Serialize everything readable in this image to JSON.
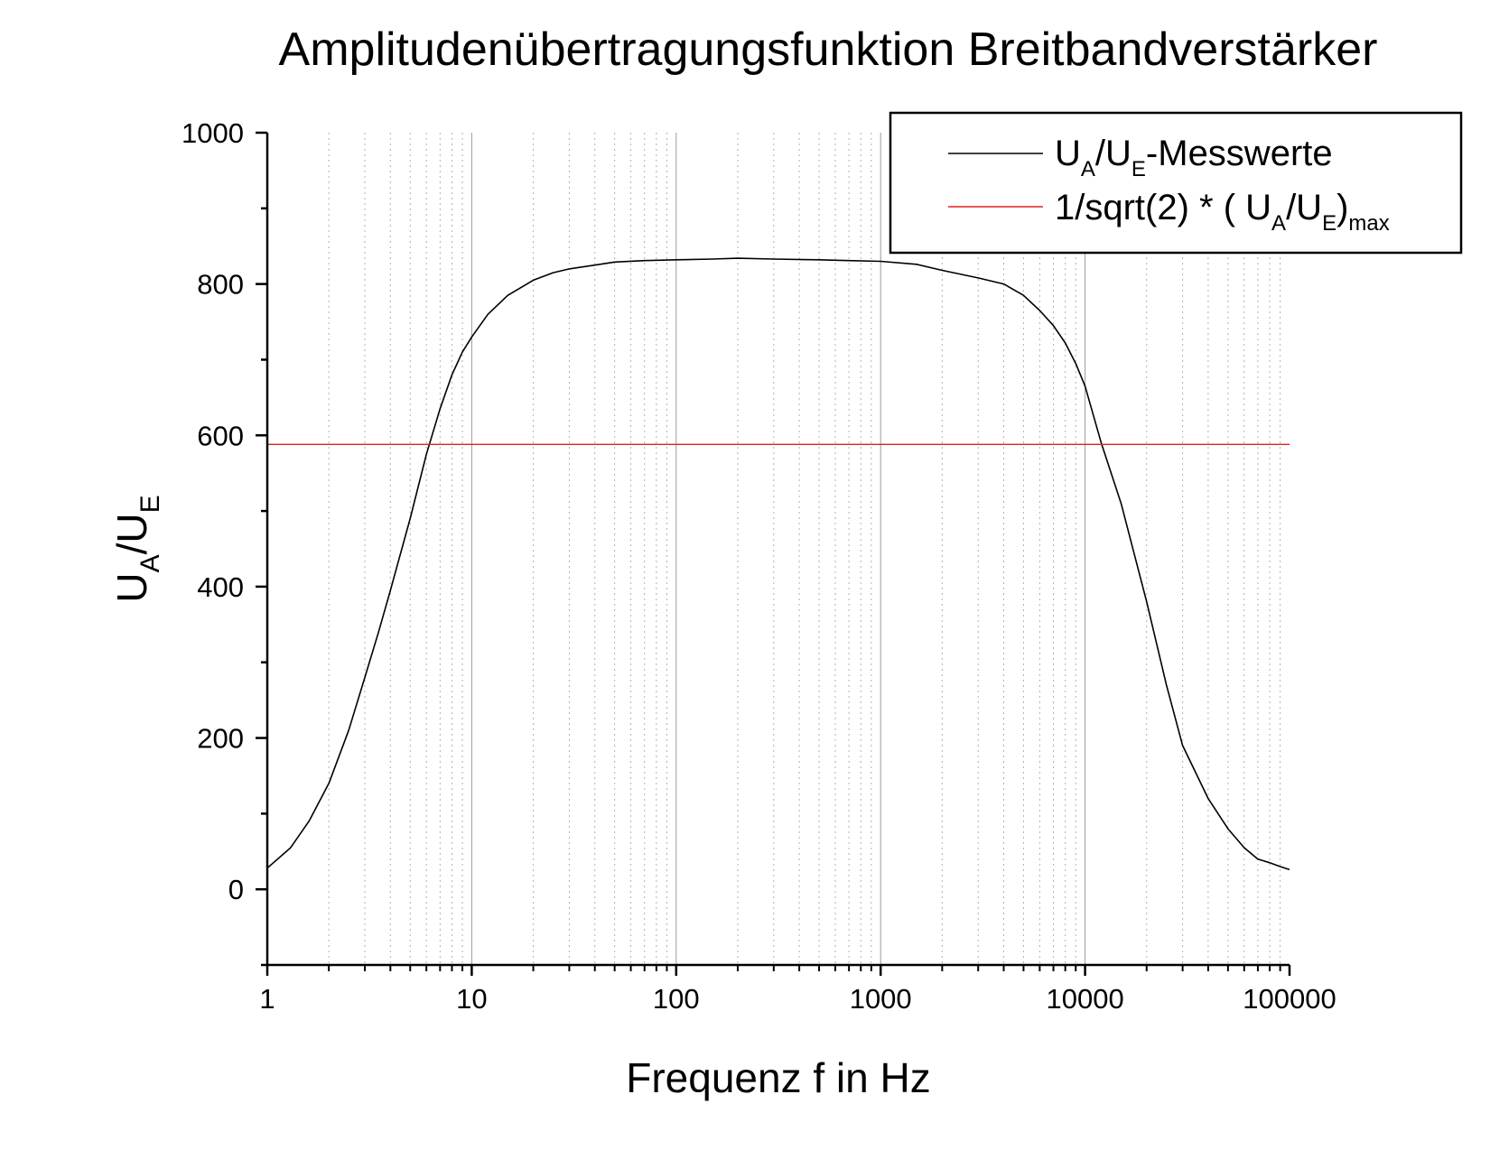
{
  "chart_data": {
    "type": "line",
    "title": "Amplitudenübertragungsfunktion Breitbandverstärker",
    "xlabel": "Frequenz f in Hz",
    "ylabel": {
      "main": "U",
      "sub1": "A",
      "mid": "/U",
      "sub2": "E"
    },
    "x_scale": "log",
    "xlim": [
      1,
      100000
    ],
    "ylim": [
      -100,
      1000
    ],
    "x_ticks": [
      "1",
      "10",
      "100",
      "1000",
      "10000",
      "100000"
    ],
    "x_tick_values": [
      1,
      10,
      100,
      1000,
      10000,
      100000
    ],
    "y_ticks": [
      "0",
      "200",
      "400",
      "600",
      "800",
      "1000"
    ],
    "y_tick_values": [
      0,
      200,
      400,
      600,
      800,
      1000
    ],
    "grid": "vertical major (solid) and minor (dotted) lines",
    "legend_position": "top-right",
    "series": [
      {
        "name": "U_A/U_E-Messwerte",
        "legend": {
          "p1": "U",
          "s1": "A",
          "p2": "/U",
          "s2": "E",
          "p3": "-Messwerte"
        },
        "color": "#000000",
        "x": [
          1,
          1.3,
          1.6,
          2,
          2.5,
          3,
          3.5,
          4,
          5,
          6,
          7,
          8,
          9,
          10,
          12,
          15,
          20,
          25,
          30,
          40,
          50,
          70,
          100,
          150,
          200,
          300,
          500,
          700,
          1000,
          1500,
          2000,
          3000,
          4000,
          5000,
          6000,
          7000,
          8000,
          9000,
          10000,
          12000,
          15000,
          20000,
          25000,
          30000,
          40000,
          50000,
          60000,
          70000,
          80000,
          90000,
          100000
        ],
        "y": [
          28,
          55,
          90,
          140,
          210,
          280,
          340,
          395,
          490,
          575,
          635,
          680,
          710,
          730,
          760,
          785,
          805,
          815,
          820,
          825,
          829,
          831,
          832,
          833,
          834,
          833,
          832,
          831,
          830,
          826,
          818,
          808,
          800,
          785,
          765,
          745,
          722,
          695,
          665,
          590,
          510,
          380,
          270,
          190,
          120,
          80,
          55,
          40,
          35,
          30,
          26
        ]
      },
      {
        "name": "1/sqrt(2) * ( U_A/U_E)_max",
        "legend": {
          "p1": "1/sqrt(2) * ( U",
          "s1": "A",
          "p2": "/U",
          "s2": "E",
          "p3": ")",
          "s3": "max"
        },
        "color": "#e02020",
        "x": [
          1,
          100000
        ],
        "y": [
          588,
          588
        ]
      }
    ]
  }
}
